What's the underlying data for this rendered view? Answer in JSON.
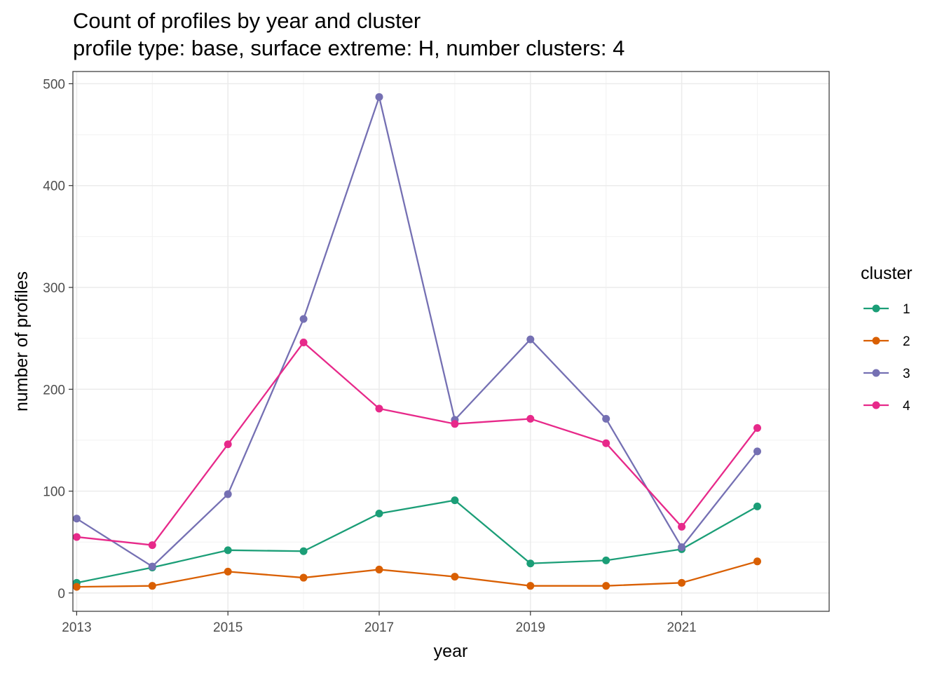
{
  "chart_data": {
    "type": "line",
    "title": "Count of profiles by year and cluster",
    "subtitle": "profile type: base, surface extreme: H, number clusters: 4",
    "xlabel": "year",
    "ylabel": "number of profiles",
    "xlim": [
      2012.95,
      2022.95
    ],
    "ylim": [
      -18,
      512
    ],
    "x_ticks": [
      2013,
      2015,
      2017,
      2019,
      2021
    ],
    "x_tick_labels": [
      "2013",
      "2015",
      "2017",
      "2019",
      "2021"
    ],
    "y_ticks": [
      0,
      100,
      200,
      300,
      400,
      500
    ],
    "y_tick_labels": [
      "0",
      "100",
      "200",
      "300",
      "400",
      "500"
    ],
    "grid": true,
    "legend_title": "cluster",
    "legend_position": "right",
    "x": [
      2013,
      2014,
      2015,
      2016,
      2017,
      2018,
      2019,
      2020,
      2021,
      2022
    ],
    "series": [
      {
        "name": "1",
        "color": "#1b9e77",
        "values": [
          10,
          25,
          42,
          41,
          78,
          91,
          29,
          32,
          43,
          85
        ]
      },
      {
        "name": "2",
        "color": "#d95f02",
        "values": [
          6,
          7,
          21,
          15,
          23,
          16,
          7,
          7,
          10,
          31
        ]
      },
      {
        "name": "3",
        "color": "#7570b3",
        "values": [
          73,
          26,
          97,
          269,
          487,
          170,
          249,
          171,
          45,
          139
        ]
      },
      {
        "name": "4",
        "color": "#e7298a",
        "values": [
          55,
          47,
          146,
          246,
          181,
          166,
          171,
          147,
          65,
          162
        ]
      }
    ]
  }
}
